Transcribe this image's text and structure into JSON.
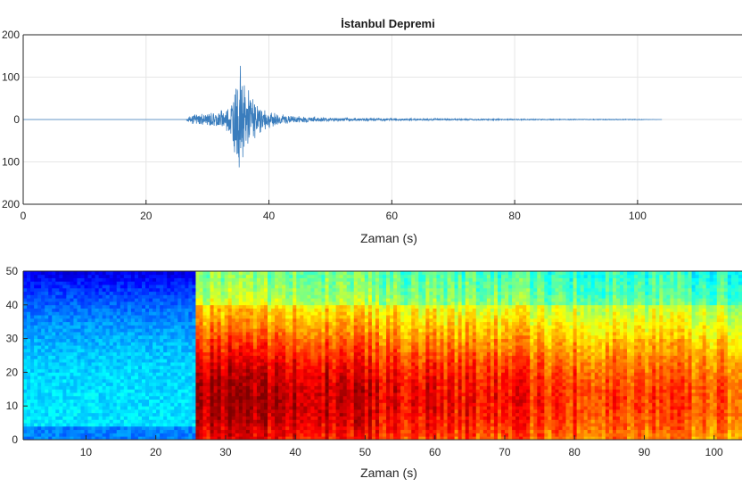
{
  "chart_data": [
    {
      "type": "line",
      "title": "İstanbul Depremi",
      "xlabel": "Zaman (s)",
      "ylabel": "",
      "xlim": [
        0,
        117
      ],
      "ylim": [
        -200,
        200
      ],
      "xticks": [
        0,
        20,
        40,
        60,
        80,
        100
      ],
      "yticks": [
        -200,
        -100,
        0,
        100,
        200
      ],
      "ytick_labels": [
        "200",
        "100",
        "0",
        "100",
        "200"
      ],
      "grid": true,
      "color": "#3a7dbd",
      "series": [
        {
          "x": [
            0,
            26.5,
            27,
            28,
            29,
            30,
            31,
            32,
            33,
            34,
            34.5,
            35,
            35.3,
            35.6,
            36,
            36.5,
            37,
            38,
            39,
            40,
            42,
            44,
            46,
            48,
            50,
            55,
            60,
            70,
            80,
            90,
            100,
            104
          ],
          "envelope": [
            0,
            0,
            10,
            14,
            16,
            18,
            20,
            24,
            30,
            60,
            95,
            110,
            155,
            120,
            95,
            80,
            70,
            40,
            30,
            22,
            14,
            10,
            8,
            6,
            5,
            4,
            3,
            2,
            1.5,
            1,
            0.8,
            0
          ]
        }
      ]
    },
    {
      "type": "heatmap",
      "title": "",
      "xlabel": "Zaman (s)",
      "ylabel": "",
      "xlim": [
        1,
        104
      ],
      "ylim": [
        0,
        50
      ],
      "xticks": [
        10,
        20,
        30,
        40,
        50,
        60,
        70,
        80,
        90,
        100
      ],
      "yticks": [
        0,
        10,
        20,
        30,
        40,
        50
      ],
      "colormap": "jet",
      "onset_time": 25.5,
      "peak": {
        "time": 37,
        "frequency": 12
      },
      "intensity": {
        "pre_event_low_freq": 0.35,
        "pre_event_high_freq": 0.1,
        "peak_max": 1.0,
        "tail_end": 0.62
      }
    }
  ]
}
